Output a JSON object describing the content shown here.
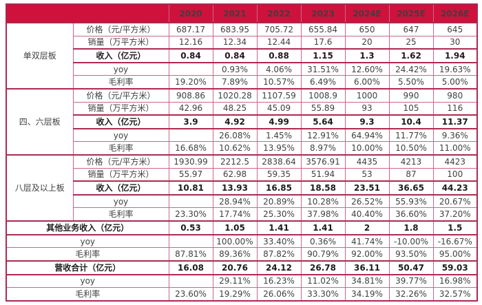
{
  "header": {
    "corner": "",
    "years": [
      "2020",
      "2021",
      "2022",
      "2023",
      "2024E",
      "2025E",
      "2026E"
    ]
  },
  "groups": [
    {
      "name": "单双层板",
      "rows": [
        {
          "label": "价格（元/平方米）",
          "bold": false,
          "values": [
            "687.17",
            "683.95",
            "705.72",
            "655.84",
            "650",
            "647",
            "645"
          ]
        },
        {
          "label": "销量（万平方米）",
          "bold": false,
          "values": [
            "12.16",
            "12.34",
            "12.44",
            "17.6",
            "20",
            "25",
            "30"
          ]
        },
        {
          "label": "收入（亿元）",
          "bold": true,
          "values": [
            "0.84",
            "0.84",
            "0.88",
            "1.15",
            "1.3",
            "1.62",
            "1.94"
          ]
        },
        {
          "label": "yoy",
          "bold": false,
          "values": [
            "",
            "0.93%",
            "4.06%",
            "31.51%",
            "12.60%",
            "24.42%",
            "19.63%"
          ]
        },
        {
          "label": "毛利率",
          "bold": false,
          "values": [
            "19.20%",
            "7.89%",
            "10.57%",
            "6.49%",
            "6.00%",
            "5.50%",
            "5.00%"
          ]
        }
      ]
    },
    {
      "name": "四、六层板",
      "rows": [
        {
          "label": "价格（元/平方米）",
          "bold": false,
          "values": [
            "908.86",
            "1020.28",
            "1107.59",
            "1008.9",
            "1000",
            "990",
            "980"
          ]
        },
        {
          "label": "销量（万平方米）",
          "bold": false,
          "values": [
            "42.96",
            "48.25",
            "45.09",
            "55.89",
            "93",
            "105",
            "116"
          ]
        },
        {
          "label": "收入（亿元）",
          "bold": true,
          "values": [
            "3.9",
            "4.92",
            "4.99",
            "5.64",
            "9.3",
            "10.4",
            "11.37"
          ]
        },
        {
          "label": "yoy",
          "bold": false,
          "values": [
            "",
            "26.08%",
            "1.45%",
            "12.91%",
            "64.94%",
            "11.77%",
            "9.36%"
          ]
        },
        {
          "label": "毛利率",
          "bold": false,
          "values": [
            "16.68%",
            "10.62%",
            "13.95%",
            "8.97%",
            "10.00%",
            "10.50%",
            "11.00%"
          ]
        }
      ]
    },
    {
      "name": "八层及以上板",
      "rows": [
        {
          "label": "价格（元/平方米）",
          "bold": false,
          "values": [
            "1930.99",
            "2212.5",
            "2838.64",
            "3576.91",
            "4435",
            "4213",
            "4423"
          ]
        },
        {
          "label": "销量（万平方米）",
          "bold": false,
          "values": [
            "55.97",
            "62.98",
            "59.35",
            "51.94",
            "53",
            "87",
            "100"
          ]
        },
        {
          "label": "收入（亿元）",
          "bold": true,
          "values": [
            "10.81",
            "13.93",
            "16.85",
            "18.58",
            "23.51",
            "36.65",
            "44.23"
          ]
        },
        {
          "label": "yoy",
          "bold": false,
          "values": [
            "",
            "28.94%",
            "20.89%",
            "10.28%",
            "26.52%",
            "55.93%",
            "20.67%"
          ]
        },
        {
          "label": "毛利率",
          "bold": false,
          "values": [
            "23.30%",
            "17.74%",
            "25.30%",
            "37.98%",
            "40.40%",
            "36.60%",
            "37.20%"
          ]
        }
      ]
    }
  ],
  "summary_rows": [
    {
      "label": "其他业务收入（亿元）",
      "bold": true,
      "values": [
        "0.53",
        "1.05",
        "1.41",
        "1.41",
        "2",
        "1.8",
        "1.5"
      ]
    },
    {
      "label": "yoy",
      "bold": false,
      "values": [
        "",
        "100.00%",
        "33.40%",
        "0.36%",
        "41.74%",
        "-10.00%",
        "-16.67%"
      ]
    },
    {
      "label": "毛利率",
      "bold": false,
      "values": [
        "87.81%",
        "89.36%",
        "87.82%",
        "90.79%",
        "92.00%",
        "93.50%",
        "95.00%"
      ]
    },
    {
      "label": "营收合计（亿元）",
      "bold": true,
      "values": [
        "16.08",
        "20.76",
        "24.12",
        "26.78",
        "36.11",
        "50.47",
        "59.03"
      ]
    },
    {
      "label": "yoy",
      "bold": false,
      "values": [
        "",
        "29.11%",
        "16.23%",
        "11.02%",
        "34.81%",
        "39.77%",
        "16.98%"
      ]
    },
    {
      "label": "毛利率",
      "bold": false,
      "values": [
        "23.60%",
        "19.29%",
        "26.06%",
        "33.30%",
        "34.19%",
        "32.26%",
        "32.57%"
      ]
    }
  ],
  "colors": {
    "header_bg": "#ce123c",
    "border_thin": "#cf6389",
    "border_thick": "#aa2950",
    "header_text": "#ffffff",
    "body_text": "#3f3f3f"
  }
}
